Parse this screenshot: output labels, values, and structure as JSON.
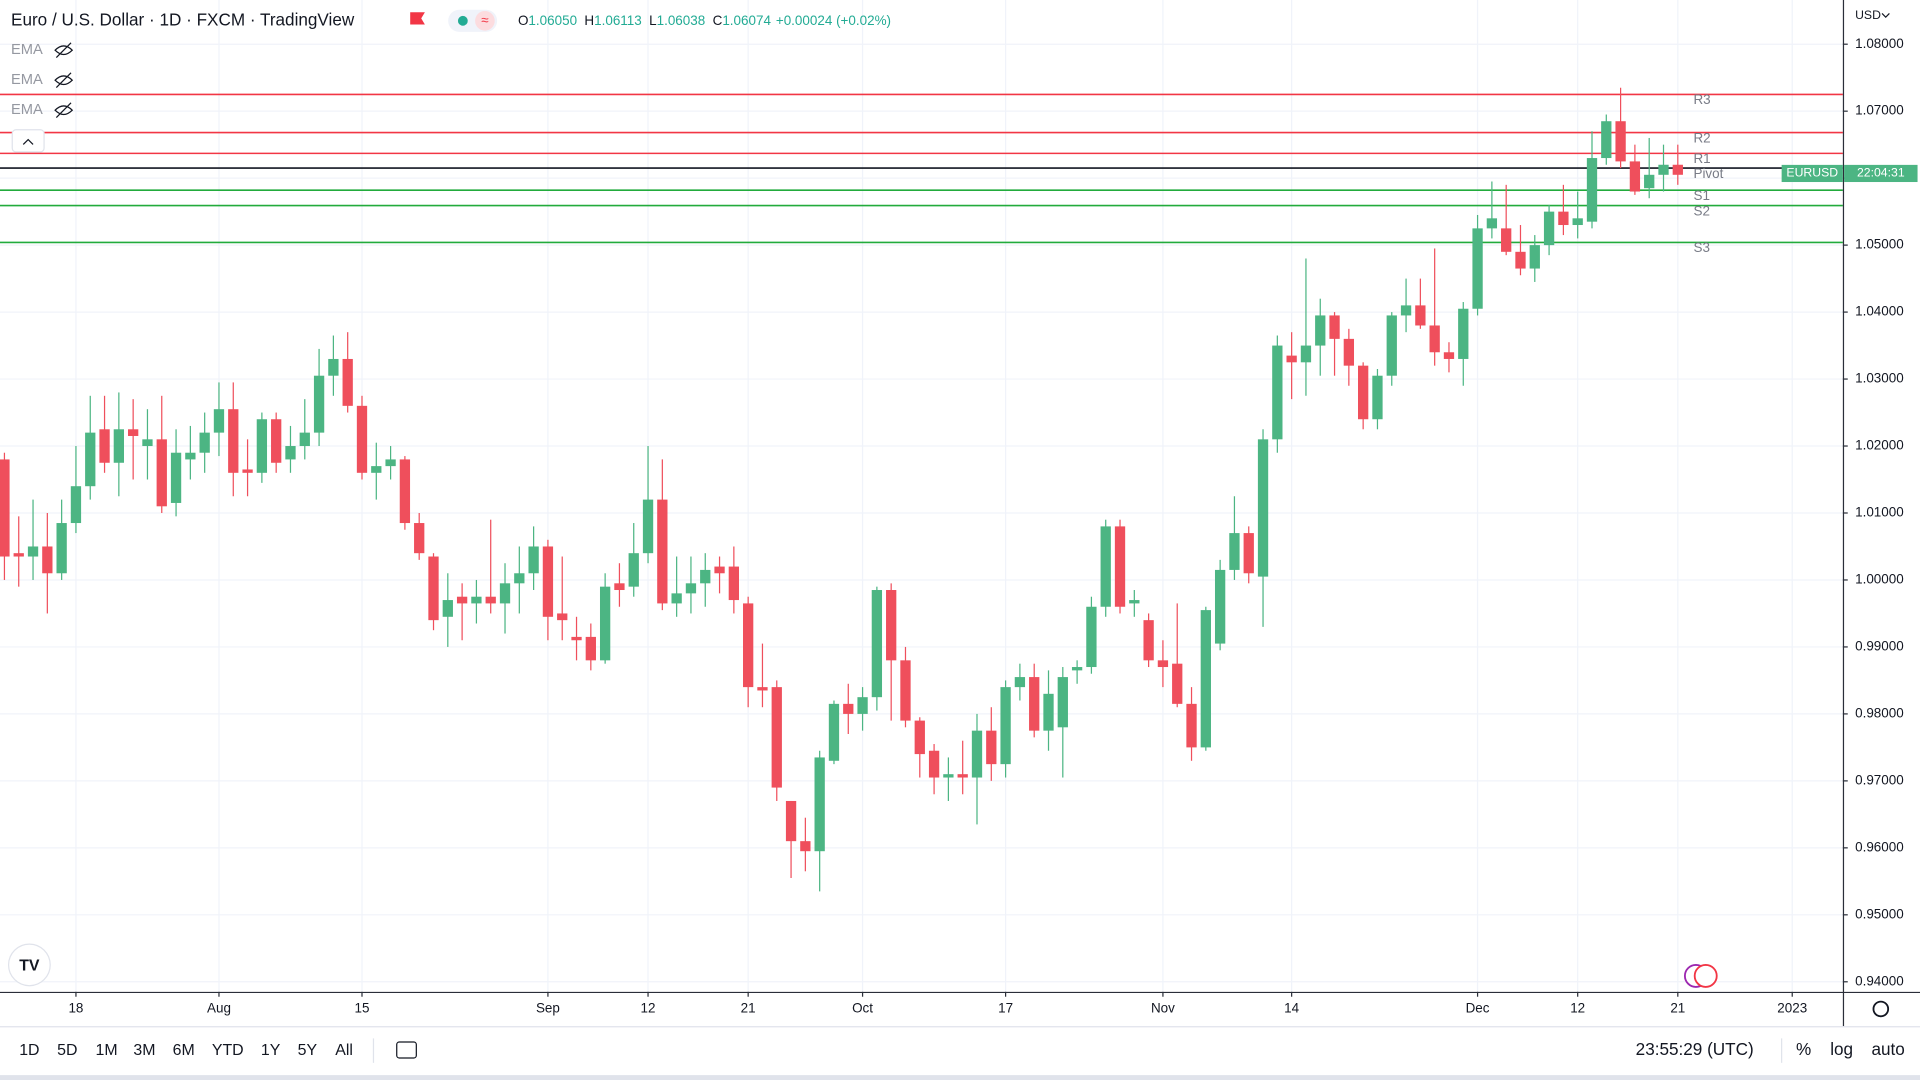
{
  "header": {
    "title": "Euro / U.S. Dollar · 1D · FXCM · TradingView",
    "ohlc": [
      {
        "key": "O",
        "value": "1.06050"
      },
      {
        "key": "H",
        "value": "1.06113"
      },
      {
        "key": "L",
        "value": "1.06038"
      },
      {
        "key": "C",
        "value": "1.06074"
      }
    ],
    "change": "+0.00024 (+0.02%)",
    "indicators": [
      "EMA",
      "EMA",
      "EMA"
    ]
  },
  "toolbar": {
    "ranges": [
      "1D",
      "5D",
      "1M",
      "3M",
      "6M",
      "YTD",
      "1Y",
      "5Y",
      "All"
    ],
    "clock": "23:55:29 (UTC)",
    "options": [
      "%",
      "log",
      "auto"
    ]
  },
  "chart_data": {
    "type": "candlestick",
    "currency": "USD",
    "grid": true,
    "series": [
      {
        "name": "EURUSD",
        "up_color": "#4cb583",
        "down_color": "#ef4f5c",
        "open": [
          1.018,
          1.004,
          1.0035,
          1.005,
          1.001,
          1.0085,
          1.014,
          1.0225,
          1.0175,
          1.0225,
          1.02,
          1.021,
          1.0115,
          1.018,
          1.019,
          1.022,
          1.0255,
          1.0165,
          1.016,
          1.024,
          1.018,
          1.02,
          1.022,
          1.0305,
          1.033,
          1.026,
          1.016,
          1.017,
          1.018,
          1.0085,
          1.0035,
          0.9945,
          0.9975,
          0.9965,
          0.9975,
          0.9965,
          0.9995,
          1.001,
          1.005,
          0.995,
          0.9915,
          0.9915,
          0.988,
          0.9995,
          0.999,
          1.004,
          1.012,
          0.9965,
          0.998,
          0.9995,
          1.002,
          1.002,
          0.9965,
          0.984,
          0.984,
          0.967,
          0.961,
          0.9595,
          0.973,
          0.9815,
          0.98,
          0.9825,
          0.9985,
          0.988,
          0.979,
          0.9745,
          0.9705,
          0.971,
          0.9705,
          0.9775,
          0.9725,
          0.984,
          0.9855,
          0.9775,
          0.978,
          0.9865,
          0.987,
          0.996,
          1.008,
          0.9965,
          0.994,
          0.988,
          0.9875,
          0.9815,
          0.975,
          0.9905,
          1.0015,
          1.007,
          1.0005,
          1.021,
          1.0335,
          1.0325,
          1.035,
          1.0395,
          1.036,
          1.032,
          1.024,
          1.0305,
          1.0395,
          1.041,
          1.038,
          1.034,
          1.033,
          1.0405,
          1.0525,
          1.0525,
          1.049,
          1.0465,
          1.05,
          1.055,
          1.053,
          1.0535,
          1.063,
          1.0685,
          1.0625,
          1.0585,
          1.0605,
          1.062
        ],
        "high": [
          1.019,
          1.0095,
          1.012,
          1.01,
          1.012,
          1.02,
          1.0275,
          1.0275,
          1.028,
          1.027,
          1.0255,
          1.0275,
          1.0225,
          1.023,
          1.025,
          1.0295,
          1.0295,
          1.021,
          1.025,
          1.025,
          1.023,
          1.027,
          1.0345,
          1.0365,
          1.037,
          1.0275,
          1.0205,
          1.02,
          1.0185,
          1.01,
          1.004,
          1.001,
          0.9995,
          1.0,
          1.009,
          1.0025,
          1.005,
          1.008,
          1.006,
          1.0035,
          0.9945,
          0.9935,
          1.001,
          1.0025,
          1.0085,
          1.02,
          1.018,
          1.0035,
          1.0035,
          1.004,
          1.0035,
          1.005,
          0.9975,
          0.9905,
          0.985,
          0.967,
          0.9645,
          0.9745,
          0.982,
          0.9845,
          0.984,
          0.999,
          0.9995,
          0.99,
          0.9795,
          0.9755,
          0.9735,
          0.976,
          0.98,
          0.981,
          0.985,
          0.9875,
          0.9875,
          0.9865,
          0.987,
          0.988,
          0.9975,
          1.009,
          1.009,
          0.9985,
          0.995,
          0.991,
          0.9965,
          0.984,
          0.996,
          1.003,
          1.0125,
          1.008,
          1.0225,
          1.0365,
          1.037,
          1.048,
          1.042,
          1.04,
          1.0375,
          1.0325,
          1.0315,
          1.04,
          1.045,
          1.045,
          1.0495,
          1.0355,
          1.0415,
          1.0545,
          1.0595,
          1.059,
          1.053,
          1.0515,
          1.056,
          1.059,
          1.058,
          1.067,
          1.0695,
          1.0735,
          1.065,
          1.066,
          1.065,
          1.065
        ],
        "low": [
          1.0,
          0.999,
          1.0,
          0.995,
          1.0,
          1.007,
          1.012,
          1.016,
          1.0125,
          1.015,
          1.015,
          1.01,
          1.0095,
          1.015,
          1.016,
          1.0185,
          1.0125,
          1.0125,
          1.0145,
          1.016,
          1.016,
          1.018,
          1.02,
          1.0275,
          1.025,
          1.015,
          1.012,
          1.015,
          1.0075,
          1.003,
          0.9925,
          0.99,
          0.991,
          0.9935,
          0.995,
          0.992,
          0.995,
          0.9985,
          0.991,
          0.991,
          0.988,
          0.9865,
          0.9875,
          0.996,
          0.9975,
          1.0025,
          0.9955,
          0.9945,
          0.995,
          0.996,
          0.998,
          0.995,
          0.981,
          0.981,
          0.967,
          0.9555,
          0.9565,
          0.9535,
          0.9725,
          0.977,
          0.9775,
          0.9805,
          0.979,
          0.978,
          0.9705,
          0.968,
          0.967,
          0.968,
          0.9635,
          0.97,
          0.9705,
          0.982,
          0.9765,
          0.9745,
          0.9705,
          0.9845,
          0.986,
          0.9945,
          0.995,
          0.9945,
          0.987,
          0.984,
          0.981,
          0.973,
          0.9745,
          0.9895,
          1.0,
          0.9995,
          0.993,
          1.019,
          1.027,
          1.0275,
          1.0305,
          1.0305,
          1.029,
          1.0225,
          1.0225,
          1.029,
          1.037,
          1.0375,
          1.032,
          1.031,
          1.029,
          1.0395,
          1.051,
          1.0485,
          1.0455,
          1.0445,
          1.0485,
          1.0515,
          1.051,
          1.0525,
          1.062,
          1.0615,
          1.0575,
          1.057,
          1.058,
          1.059
        ],
        "close": [
          1.0035,
          1.0035,
          1.005,
          1.001,
          1.0085,
          1.014,
          1.022,
          1.0175,
          1.0225,
          1.0215,
          1.021,
          1.011,
          1.019,
          1.019,
          1.022,
          1.0255,
          1.016,
          1.016,
          1.024,
          1.0175,
          1.02,
          1.022,
          1.0305,
          1.033,
          1.026,
          1.016,
          1.017,
          1.018,
          1.0085,
          1.004,
          0.994,
          0.997,
          0.9965,
          0.9975,
          0.9965,
          0.9995,
          1.001,
          1.005,
          0.9945,
          0.994,
          0.991,
          0.988,
          0.999,
          0.9985,
          1.004,
          1.012,
          0.9965,
          0.998,
          0.9995,
          1.0015,
          1.001,
          0.997,
          0.984,
          0.9835,
          0.969,
          0.961,
          0.9595,
          0.9735,
          0.9815,
          0.98,
          0.9825,
          0.9985,
          0.988,
          0.979,
          0.974,
          0.9705,
          0.971,
          0.9705,
          0.9775,
          0.9725,
          0.984,
          0.9855,
          0.9775,
          0.983,
          0.9855,
          0.987,
          0.996,
          1.008,
          0.996,
          0.997,
          0.988,
          0.987,
          0.9815,
          0.975,
          0.9955,
          1.0015,
          1.007,
          1.001,
          1.021,
          1.035,
          1.0325,
          1.035,
          1.0395,
          1.036,
          1.032,
          1.024,
          1.0305,
          1.0395,
          1.041,
          1.038,
          1.034,
          1.033,
          1.0405,
          1.0525,
          1.054,
          1.049,
          1.0465,
          1.05,
          1.055,
          1.053,
          1.054,
          1.063,
          1.0685,
          1.0625,
          1.058,
          1.0605,
          1.062,
          1.0605
        ]
      }
    ],
    "pivots": [
      {
        "name": "R3",
        "value": 1.0725,
        "color": "#f23645"
      },
      {
        "name": "R2",
        "value": 1.0668,
        "color": "#f23645"
      },
      {
        "name": "R1",
        "value": 1.0637,
        "color": "#f23645"
      },
      {
        "name": "Pivot",
        "value": 1.0615,
        "color": "#131722"
      },
      {
        "name": "S1",
        "value": 1.0582,
        "color": "#22ab3c"
      },
      {
        "name": "S2",
        "value": 1.0559,
        "color": "#22ab3c"
      },
      {
        "name": "S3",
        "value": 1.0504,
        "color": "#22ab3c"
      }
    ],
    "price_tag": {
      "value": 1.0607,
      "countdown": "22:04:31",
      "color": "#4cb583"
    },
    "ylim": [
      0.9385,
      1.0866
    ],
    "yticks": [
      {
        "value": 0.94,
        "label": "0.94000"
      },
      {
        "value": 0.95,
        "label": "0.95000"
      },
      {
        "value": 0.96,
        "label": "0.96000"
      },
      {
        "value": 0.97,
        "label": "0.97000"
      },
      {
        "value": 0.98,
        "label": "0.98000"
      },
      {
        "value": 0.99,
        "label": "0.99000"
      },
      {
        "value": 1.0,
        "label": "1.00000"
      },
      {
        "value": 1.01,
        "label": "1.01000"
      },
      {
        "value": 1.02,
        "label": "1.02000"
      },
      {
        "value": 1.03,
        "label": "1.03000"
      },
      {
        "value": 1.04,
        "label": "1.04000"
      },
      {
        "value": 1.05,
        "label": "1.05000"
      },
      {
        "value": 1.06,
        "label": "1.06000"
      },
      {
        "value": 1.07,
        "label": "1.07000"
      },
      {
        "value": 1.08,
        "label": "1.08000"
      }
    ],
    "xlim": [
      -0.31,
      128.54
    ],
    "xticks": [
      {
        "value": 5,
        "label": "18"
      },
      {
        "value": 15,
        "label": "Aug"
      },
      {
        "value": 25,
        "label": "15"
      },
      {
        "value": 38,
        "label": "Sep"
      },
      {
        "value": 45,
        "label": "12"
      },
      {
        "value": 52,
        "label": "21"
      },
      {
        "value": 60,
        "label": "Oct"
      },
      {
        "value": 70,
        "label": "17"
      },
      {
        "value": 81,
        "label": "Nov"
      },
      {
        "value": 90,
        "label": "14"
      },
      {
        "value": 103,
        "label": "Dec"
      },
      {
        "value": 110,
        "label": "12"
      },
      {
        "value": 117,
        "label": "21"
      },
      {
        "value": 125,
        "label": "2023"
      }
    ]
  }
}
